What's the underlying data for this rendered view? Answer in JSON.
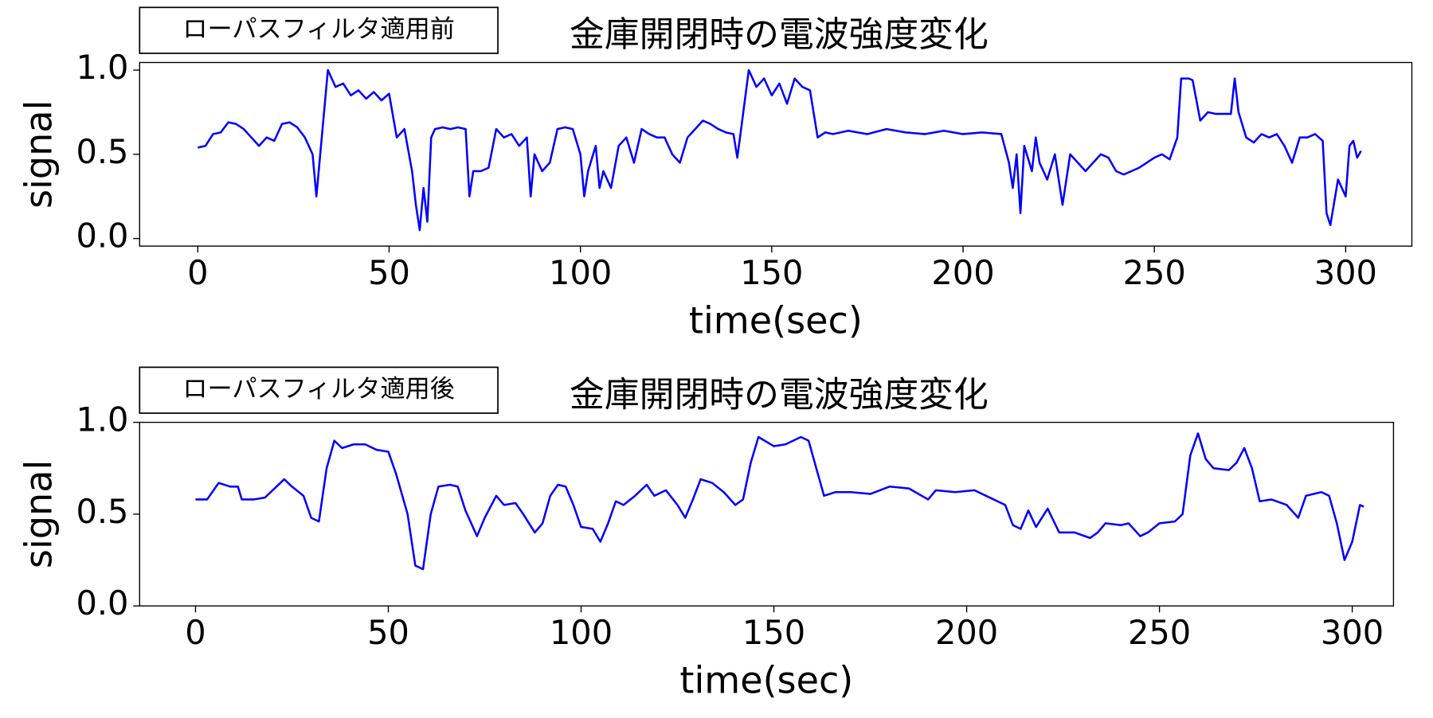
{
  "chart_data": [
    {
      "type": "line",
      "title": "金庫開閉時の電波強度変化",
      "annotation": "ローパスフィルタ適用前",
      "xlabel": "time(sec)",
      "ylabel": "signal",
      "color": "#0000ff",
      "x": [
        0,
        2,
        4,
        6,
        8,
        10,
        12,
        14,
        16,
        18,
        20,
        22,
        24,
        26,
        28,
        30,
        31,
        32,
        34,
        36,
        38,
        40,
        42,
        44,
        46,
        48,
        50,
        52,
        54,
        56,
        57,
        58,
        59,
        60,
        61,
        62,
        64,
        66,
        68,
        70,
        71,
        72,
        74,
        76,
        78,
        80,
        82,
        84,
        86,
        87,
        88,
        90,
        92,
        94,
        96,
        98,
        100,
        101,
        102,
        104,
        105,
        106,
        108,
        110,
        112,
        114,
        116,
        118,
        120,
        122,
        124,
        126,
        128,
        130,
        132,
        134,
        136,
        138,
        140,
        141,
        142,
        144,
        146,
        148,
        150,
        152,
        154,
        156,
        158,
        160,
        162,
        164,
        166,
        170,
        175,
        180,
        185,
        190,
        195,
        200,
        205,
        210,
        212,
        213,
        214,
        215,
        216,
        218,
        219,
        220,
        222,
        224,
        226,
        228,
        230,
        232,
        234,
        236,
        238,
        240,
        242,
        244,
        246,
        248,
        250,
        252,
        254,
        256,
        257,
        259,
        260,
        262,
        264,
        266,
        268,
        270,
        271,
        272,
        274,
        276,
        278,
        280,
        282,
        284,
        286,
        288,
        290,
        292,
        294,
        295,
        296,
        298,
        300,
        301,
        302,
        303,
        304
      ],
      "values": [
        0.54,
        0.55,
        0.62,
        0.63,
        0.69,
        0.68,
        0.65,
        0.6,
        0.55,
        0.6,
        0.58,
        0.68,
        0.69,
        0.66,
        0.6,
        0.5,
        0.25,
        0.5,
        1.0,
        0.9,
        0.92,
        0.85,
        0.88,
        0.83,
        0.87,
        0.82,
        0.86,
        0.6,
        0.65,
        0.4,
        0.2,
        0.05,
        0.3,
        0.1,
        0.6,
        0.65,
        0.66,
        0.65,
        0.66,
        0.65,
        0.25,
        0.4,
        0.4,
        0.42,
        0.65,
        0.6,
        0.62,
        0.55,
        0.6,
        0.25,
        0.5,
        0.4,
        0.45,
        0.65,
        0.66,
        0.65,
        0.5,
        0.25,
        0.4,
        0.55,
        0.3,
        0.4,
        0.3,
        0.55,
        0.6,
        0.45,
        0.65,
        0.62,
        0.6,
        0.6,
        0.5,
        0.45,
        0.6,
        0.65,
        0.7,
        0.68,
        0.65,
        0.63,
        0.62,
        0.48,
        0.65,
        1.0,
        0.9,
        0.95,
        0.85,
        0.92,
        0.8,
        0.95,
        0.9,
        0.88,
        0.6,
        0.63,
        0.62,
        0.64,
        0.62,
        0.65,
        0.63,
        0.62,
        0.64,
        0.62,
        0.63,
        0.62,
        0.45,
        0.3,
        0.5,
        0.15,
        0.55,
        0.4,
        0.6,
        0.45,
        0.35,
        0.5,
        0.2,
        0.5,
        0.45,
        0.4,
        0.45,
        0.5,
        0.48,
        0.4,
        0.38,
        0.4,
        0.42,
        0.45,
        0.48,
        0.5,
        0.47,
        0.6,
        0.95,
        0.95,
        0.94,
        0.7,
        0.75,
        0.74,
        0.74,
        0.74,
        0.95,
        0.75,
        0.6,
        0.57,
        0.62,
        0.6,
        0.62,
        0.55,
        0.45,
        0.6,
        0.6,
        0.62,
        0.58,
        0.15,
        0.08,
        0.35,
        0.25,
        0.55,
        0.58,
        0.48,
        0.52
      ],
      "xlim": [
        -15.2,
        317.3
      ],
      "ylim": [
        -0.045,
        1.045
      ],
      "xticks": [
        0,
        50,
        100,
        150,
        200,
        250,
        300
      ],
      "yticks": [
        {
          "value": 0,
          "label": "0.0"
        },
        {
          "value": 0.5,
          "label": "0.5"
        },
        {
          "value": 1,
          "label": "1.0"
        }
      ]
    },
    {
      "type": "line",
      "title": "金庫開閉時の電波強度変化",
      "annotation": "ローパスフィルタ適用後",
      "xlabel": "time(sec)",
      "ylabel": "signal",
      "color": "#0000ff",
      "x": [
        0,
        3,
        6,
        9,
        11,
        12,
        15,
        18,
        21,
        23,
        25,
        28,
        30,
        32,
        34,
        36,
        38,
        41,
        44,
        47,
        50,
        52,
        55,
        57,
        59,
        61,
        63,
        66,
        68,
        70,
        73,
        75,
        78,
        80,
        83,
        85,
        88,
        90,
        92,
        94,
        96,
        98,
        100,
        103,
        105,
        107,
        109,
        111,
        114,
        117,
        119,
        122,
        125,
        127,
        129,
        131,
        134,
        137,
        140,
        142,
        144,
        146,
        150,
        153,
        157,
        159,
        161,
        163,
        166,
        170,
        175,
        180,
        185,
        190,
        192,
        197,
        202,
        207,
        210,
        212,
        214,
        216,
        218,
        221,
        224,
        228,
        232,
        234,
        236,
        240,
        242,
        245,
        247,
        250,
        254,
        256,
        258,
        260,
        262,
        264,
        268,
        270,
        272,
        274,
        276,
        279,
        283,
        286,
        288,
        292,
        294,
        296,
        298,
        300,
        302,
        303
      ],
      "values": [
        0.58,
        0.58,
        0.67,
        0.65,
        0.65,
        0.58,
        0.58,
        0.59,
        0.65,
        0.69,
        0.65,
        0.6,
        0.48,
        0.46,
        0.75,
        0.9,
        0.86,
        0.88,
        0.88,
        0.85,
        0.84,
        0.72,
        0.5,
        0.22,
        0.2,
        0.5,
        0.65,
        0.66,
        0.65,
        0.52,
        0.38,
        0.48,
        0.6,
        0.55,
        0.56,
        0.5,
        0.4,
        0.45,
        0.6,
        0.66,
        0.65,
        0.55,
        0.43,
        0.42,
        0.35,
        0.45,
        0.57,
        0.55,
        0.6,
        0.66,
        0.6,
        0.63,
        0.55,
        0.48,
        0.58,
        0.69,
        0.67,
        0.62,
        0.55,
        0.58,
        0.78,
        0.92,
        0.87,
        0.88,
        0.92,
        0.9,
        0.75,
        0.6,
        0.62,
        0.62,
        0.61,
        0.65,
        0.64,
        0.58,
        0.63,
        0.62,
        0.63,
        0.58,
        0.55,
        0.44,
        0.42,
        0.52,
        0.43,
        0.53,
        0.4,
        0.4,
        0.37,
        0.4,
        0.45,
        0.44,
        0.45,
        0.38,
        0.4,
        0.45,
        0.46,
        0.5,
        0.82,
        0.94,
        0.8,
        0.75,
        0.74,
        0.78,
        0.86,
        0.75,
        0.57,
        0.58,
        0.55,
        0.48,
        0.6,
        0.62,
        0.6,
        0.45,
        0.25,
        0.35,
        0.55,
        0.54
      ],
      "xlim": [
        -14.5,
        310.7
      ],
      "ylim": [
        0,
        1
      ],
      "xticks": [
        0,
        50,
        100,
        150,
        200,
        250,
        300
      ],
      "yticks": [
        {
          "value": 0,
          "label": "0.0"
        },
        {
          "value": 0.5,
          "label": "0.5"
        },
        {
          "value": 1,
          "label": "1.0"
        }
      ]
    }
  ]
}
